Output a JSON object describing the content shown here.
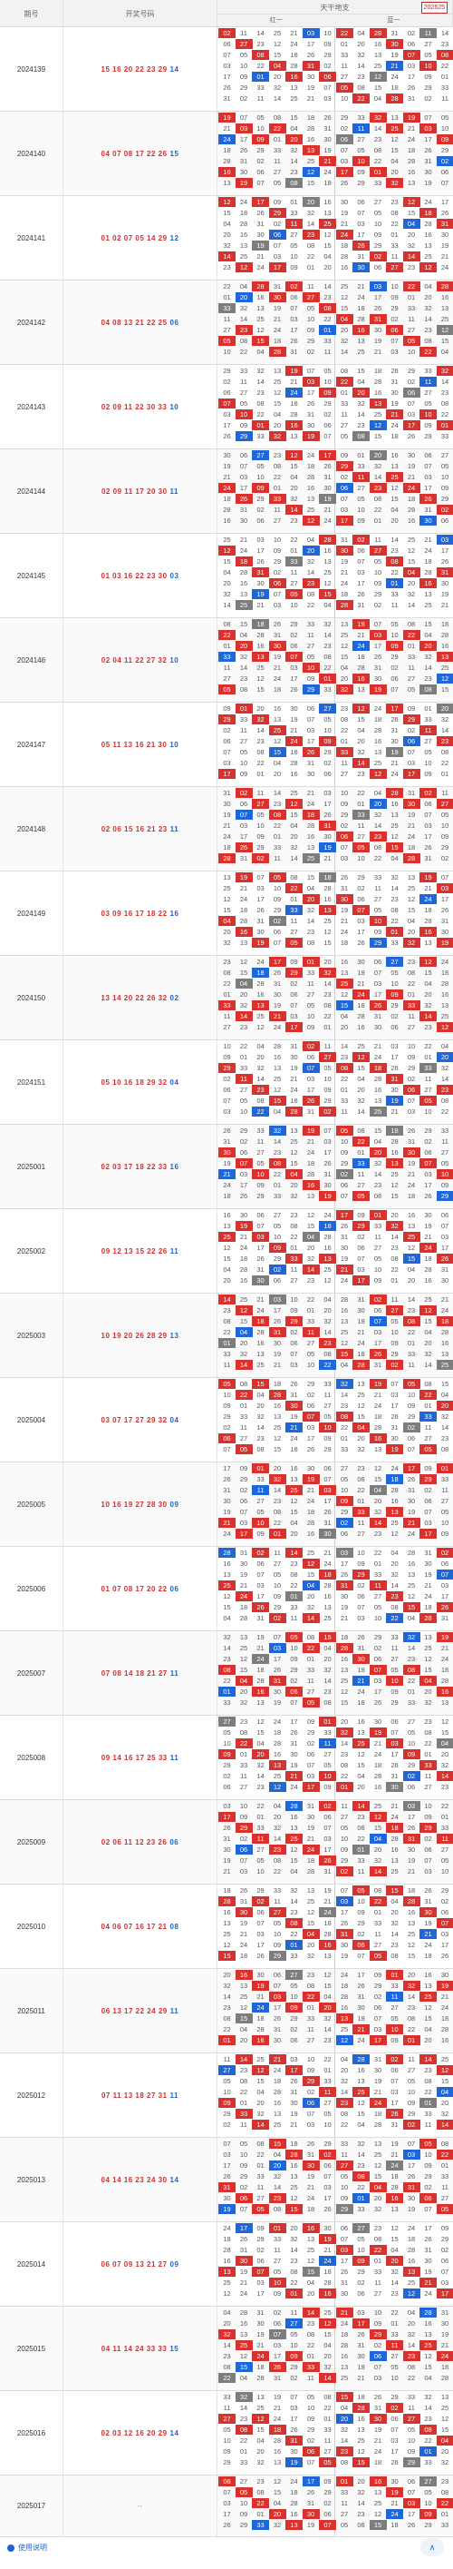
{
  "header": {
    "period_col": "期号",
    "draw_col": "开奖号码",
    "grid_title": "天干地支",
    "grid_left": "红一",
    "grid_right": "蓝一",
    "code_box": "202625"
  },
  "footer": {
    "link_label": "使用说明",
    "scroll_label": "∧"
  },
  "draws": [
    {
      "period": "2024139",
      "reds": "15 16 20 22 23 29",
      "blue": "14"
    },
    {
      "period": "2024140",
      "reds": "04 07 08 17 22 26",
      "blue": "15"
    },
    {
      "period": "2024141",
      "reds": "01 02 07 05 14 29",
      "blue": "12"
    },
    {
      "period": "2024142",
      "reds": "04 08 13 21 22 25",
      "blue": "06"
    },
    {
      "period": "2024143",
      "reds": "02 09 11 22 30 33",
      "blue": "10"
    },
    {
      "period": "2024144",
      "reds": "02 09 11 17 20 30",
      "blue": "11"
    },
    {
      "period": "2024145",
      "reds": "01 03 16 22 23 30",
      "blue": "03"
    },
    {
      "period": "2024146",
      "reds": "02 04 11 22 27 32",
      "blue": "10"
    },
    {
      "period": "2024147",
      "reds": "05 11 13 16 21 30",
      "blue": "10"
    },
    {
      "period": "2024148",
      "reds": "02 06 15 16 21 23",
      "blue": "11"
    },
    {
      "period": "2024149",
      "reds": "03 09 16 17 18 22",
      "blue": "16"
    },
    {
      "period": "2024150",
      "reds": "13 14 20 22 26 32",
      "blue": "02"
    },
    {
      "period": "2024151",
      "reds": "05 10 16 18 29 32",
      "blue": "04"
    },
    {
      "period": "2025001",
      "reds": "02 03 17 18 22 33",
      "blue": "16"
    },
    {
      "period": "2025002",
      "reds": "09 12 13 15 22 26",
      "blue": "11"
    },
    {
      "period": "2025003",
      "reds": "10 19 20 26 28 29",
      "blue": "13"
    },
    {
      "period": "2025004",
      "reds": "03 07 17 27 29 32",
      "blue": "04"
    },
    {
      "period": "2025005",
      "reds": "10 16 19 27 28 30",
      "blue": "09"
    },
    {
      "period": "2025006",
      "reds": "01 07 08 17 20 22",
      "blue": "06"
    },
    {
      "period": "2025007",
      "reds": "07 08 14 18 21 27",
      "blue": "11"
    },
    {
      "period": "2025008",
      "reds": "09 14 16 17 25 33",
      "blue": "11"
    },
    {
      "period": "2025009",
      "reds": "02 06 11 12 23 26",
      "blue": "06"
    },
    {
      "period": "2025010",
      "reds": "04 06 07 16 17 21",
      "blue": "08"
    },
    {
      "period": "2025011",
      "reds": "06 13 17 22 24 29",
      "blue": "11"
    },
    {
      "period": "2025012",
      "reds": "07 11 13 18 27 31",
      "blue": "11"
    },
    {
      "period": "2025013",
      "reds": "04 14 16 23 24 30",
      "blue": "14"
    },
    {
      "period": "2025014",
      "reds": "06 07 09 13 21 27",
      "blue": "09"
    },
    {
      "period": "2025015",
      "reds": "04 11 14 24 33 33",
      "blue": "15"
    },
    {
      "period": "2025016",
      "reds": "02 03 12 16 20 29",
      "blue": "14"
    },
    {
      "period": "2025017",
      "reds": "",
      "blue": "",
      "pending": "--"
    }
  ],
  "grid_cells": [
    "02",
    "32",
    "30",
    "11",
    "13",
    "06",
    "14",
    "19",
    "27",
    "25",
    "07",
    "23",
    "21",
    "05",
    "12",
    "03",
    "08",
    "24",
    "10",
    "15",
    "17",
    "22",
    "18",
    "09",
    "04",
    "26",
    "01",
    "28",
    "29",
    "20",
    "31",
    "33",
    "16"
  ],
  "colors": {
    "red": "#d9322e",
    "blue": "#1f66d8",
    "gray": "#7d7d7d",
    "draw_red": "#d32f2f",
    "draw_blue": "#1e63d0"
  }
}
